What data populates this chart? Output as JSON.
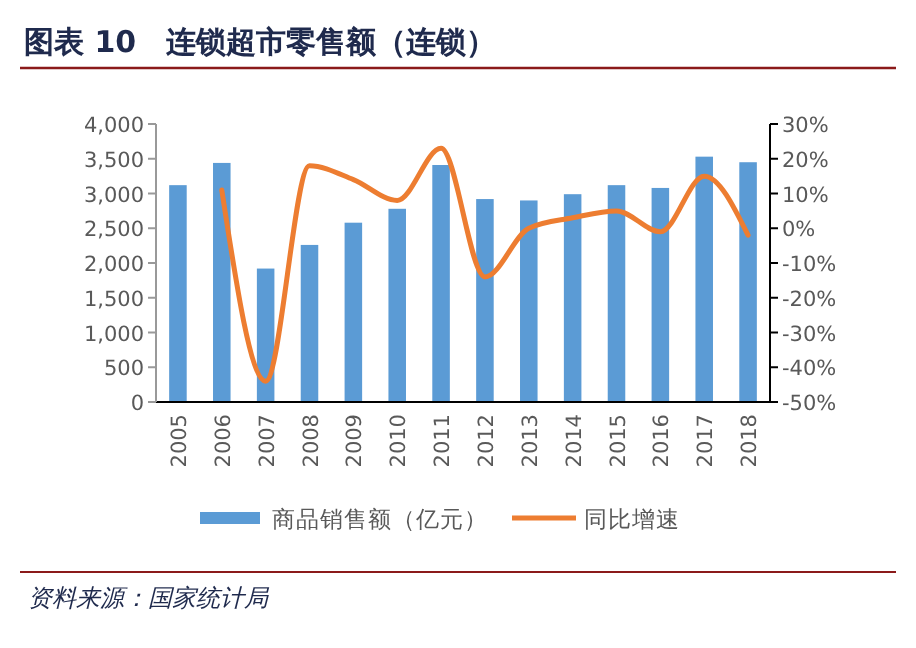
{
  "chart_data": {
    "type": "bar",
    "title": "图表 10　连锁超市零售额（连锁）",
    "annotations": [
      "资料来源：国家统计局"
    ],
    "categories": [
      "2005",
      "2006",
      "2007",
      "2008",
      "2009",
      "2010",
      "2011",
      "2012",
      "2013",
      "2014",
      "2015",
      "2016",
      "2017",
      "2018"
    ],
    "series": [
      {
        "name": "商品销售额（亿元）",
        "color": "#5b9bd5",
        "values": [
          3120,
          3440,
          1920,
          2260,
          2580,
          2780,
          3410,
          2920,
          2900,
          2990,
          3120,
          3080,
          3530,
          3450
        ]
      },
      {
        "name": "同比增速",
        "type": "line",
        "axis": "y2",
        "color": "#ed7d31",
        "values": [
          null,
          11,
          -44,
          18,
          14,
          8,
          23,
          -14,
          0,
          3,
          5,
          -1,
          15,
          -2
        ]
      }
    ],
    "ylim": [
      0,
      4000
    ],
    "yticks": [
      {
        "value": 0,
        "label": "0"
      },
      {
        "value": 500,
        "label": "500"
      },
      {
        "value": 1000,
        "label": "1,000"
      },
      {
        "value": 1500,
        "label": "1,500"
      },
      {
        "value": 2000,
        "label": "2,000"
      },
      {
        "value": 2500,
        "label": "2,500"
      },
      {
        "value": 3000,
        "label": "3,000"
      },
      {
        "value": 3500,
        "label": "3,500"
      },
      {
        "value": 4000,
        "label": "4,000"
      }
    ],
    "y2lim": [
      -50,
      30
    ],
    "y2ticks": [
      {
        "value": -50,
        "label": "-50%"
      },
      {
        "value": -40,
        "label": "-40%"
      },
      {
        "value": -30,
        "label": "-30%"
      },
      {
        "value": -20,
        "label": "-20%"
      },
      {
        "value": -10,
        "label": "-10%"
      },
      {
        "value": 0,
        "label": "0%"
      },
      {
        "value": 10,
        "label": "10%"
      },
      {
        "value": 20,
        "label": "20%"
      },
      {
        "value": 30,
        "label": "30%"
      }
    ],
    "legend": "bottom",
    "grid": false
  }
}
